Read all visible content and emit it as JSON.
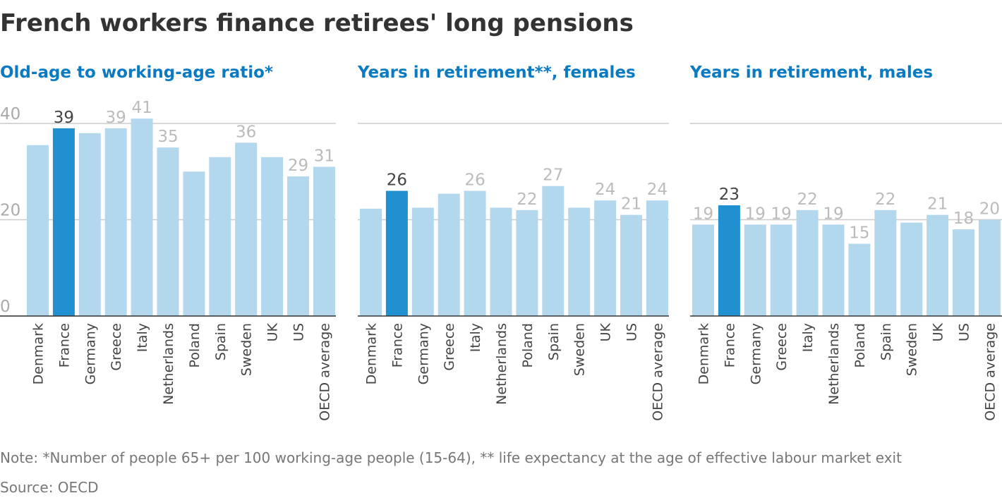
{
  "title": "French workers finance retirees' long pensions",
  "note": "Note: *Number of people 65+ per 100 working-age people (15-64), ** life expectancy at the age of effective labour market exit",
  "source": "Source: OECD",
  "chart_data": [
    {
      "type": "bar",
      "title": "Old-age to working-age ratio*",
      "categories": [
        "Denmark",
        "France",
        "Germany",
        "Greece",
        "Italy",
        "Netherlands",
        "Poland",
        "Spain",
        "Sweden",
        "UK",
        "US",
        "OECD average"
      ],
      "values": [
        35.5,
        39,
        38,
        39,
        41,
        35,
        30,
        33,
        36,
        33,
        29,
        31
      ],
      "value_labels": [
        null,
        "39",
        null,
        "39",
        "41",
        "35",
        null,
        null,
        "36",
        null,
        "29",
        "31"
      ],
      "color": "#b3d8ee",
      "highlight": "France",
      "highlight_color": "#2190d0",
      "ylim": [
        0,
        40
      ],
      "yticks": [
        0,
        20,
        40
      ],
      "tick_labels": true,
      "grid": true
    },
    {
      "type": "bar",
      "title": "Years in retirement**, females",
      "categories": [
        "Denmark",
        "France",
        "Germany",
        "Greece",
        "Italy",
        "Netherlands",
        "Poland",
        "Spain",
        "Sweden",
        "UK",
        "US",
        "OECD average"
      ],
      "values": [
        22.3,
        26,
        22.5,
        25.4,
        26,
        22.5,
        22,
        27,
        22.5,
        24,
        21,
        24
      ],
      "value_labels": [
        null,
        "26",
        null,
        null,
        "26",
        null,
        "22",
        "27",
        null,
        "24",
        "21",
        "24"
      ],
      "color": "#b3d8ee",
      "highlight": "France",
      "highlight_color": "#2190d0",
      "ylim": [
        0,
        40
      ],
      "yticks": [
        20,
        40
      ],
      "tick_labels": false,
      "grid": true
    },
    {
      "type": "bar",
      "title": "Years in retirement, males",
      "categories": [
        "Denmark",
        "France",
        "Germany",
        "Greece",
        "Italy",
        "Netherlands",
        "Poland",
        "Spain",
        "Sweden",
        "UK",
        "US",
        "OECD average"
      ],
      "values": [
        19,
        23,
        19,
        19,
        22,
        19,
        15,
        22,
        19.4,
        21,
        18,
        20
      ],
      "value_labels": [
        "19",
        "23",
        "19",
        "19",
        "22",
        "19",
        "15",
        "22",
        null,
        "21",
        "18",
        "20"
      ],
      "color": "#b3d8ee",
      "highlight": "France",
      "highlight_color": "#2190d0",
      "ylim": [
        0,
        40
      ],
      "yticks": [
        20,
        40
      ],
      "tick_labels": false,
      "grid": true
    }
  ]
}
